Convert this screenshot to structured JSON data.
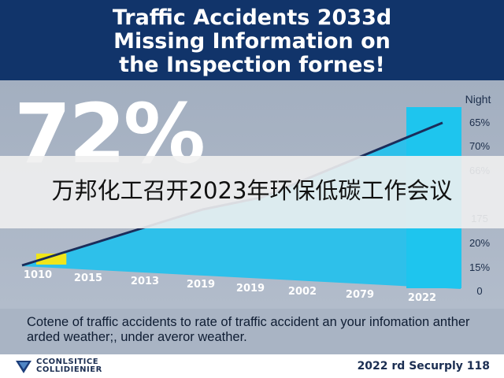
{
  "header": {
    "title_lines": [
      "Traffic Accidents 2033d",
      "Missing Information on",
      "the Inspection fornes!"
    ]
  },
  "headline_stat": "72%",
  "overlay_caption": "万邦化工召开2023年环保低碳工作会议",
  "chart_data": {
    "type": "area",
    "title": "Traffic Accidents 2033d Missing Information on the Inspection fornes!",
    "series_label": "Night",
    "x": [
      "1010",
      "2015",
      "2013",
      "2019",
      "2019",
      "2002",
      "2079",
      "2022"
    ],
    "y_tick_labels": [
      "0",
      "15%",
      "20%",
      "175",
      "",
      "66%",
      "70%",
      "65%"
    ],
    "line_values": [
      0,
      1.5,
      3,
      4.5,
      5.5,
      7.5,
      9.5,
      11.5
    ],
    "ylim": [
      0,
      12
    ],
    "highlight": {
      "color": "#f0e51a",
      "from_index": 0,
      "to_index": 1
    },
    "colors": {
      "area": "#2ec0ea",
      "line": "#1b2d5a",
      "highlight": "#f0e51a",
      "last_bar": "#1ec5ee"
    }
  },
  "caption": "Cotene of traffic accidents to rate of traffic accident an your infomation anther arded weather;, under averor weather.",
  "footer": {
    "logo_text": "CCONLSITICE\nCOLLIDIENIER",
    "note": "2022 rd Securply 118"
  }
}
